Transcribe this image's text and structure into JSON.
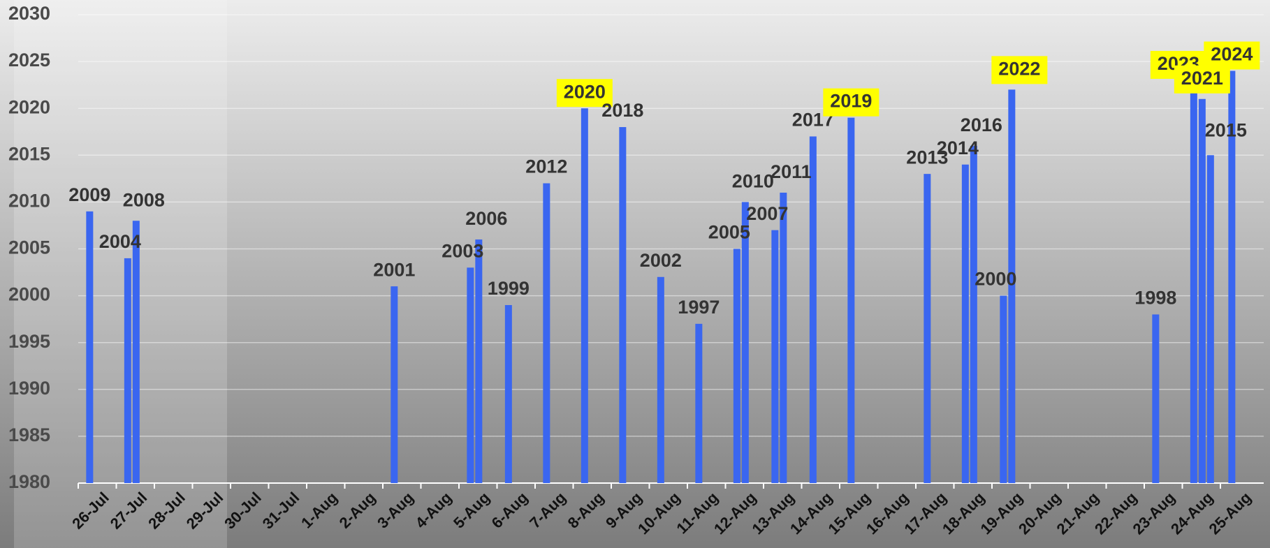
{
  "chart_data": {
    "type": "bar",
    "categories": [
      "26-Jul",
      "27-Jul",
      "28-Jul",
      "29-Jul",
      "30-Jul",
      "31-Jul",
      "1-Aug",
      "2-Aug",
      "3-Aug",
      "4-Aug",
      "5-Aug",
      "6-Aug",
      "7-Aug",
      "8-Aug",
      "9-Aug",
      "10-Aug",
      "11-Aug",
      "12-Aug",
      "13-Aug",
      "14-Aug",
      "15-Aug",
      "16-Aug",
      "17-Aug",
      "18-Aug",
      "19-Aug",
      "20-Aug",
      "21-Aug",
      "22-Aug",
      "23-Aug",
      "24-Aug",
      "25-Aug"
    ],
    "values": [
      [
        2009
      ],
      [
        2004,
        2008
      ],
      [],
      [],
      [],
      [],
      [],
      [],
      [
        2001
      ],
      [],
      [
        2003,
        2006
      ],
      [
        1999
      ],
      [
        2012
      ],
      [
        2020
      ],
      [
        2018
      ],
      [
        2002
      ],
      [
        1997
      ],
      [
        2005,
        2010
      ],
      [
        2007,
        2011
      ],
      [
        2017
      ],
      [
        2019
      ],
      [],
      [
        2013
      ],
      [
        2014,
        2016
      ],
      [
        2000,
        2022
      ],
      [],
      [],
      [],
      [
        1998
      ],
      [
        2023,
        2021,
        2015
      ],
      [
        2024
      ]
    ],
    "highlight": [
      [
        false
      ],
      [
        false,
        false
      ],
      [],
      [],
      [],
      [],
      [],
      [],
      [
        false
      ],
      [],
      [
        false,
        false
      ],
      [
        false
      ],
      [
        false
      ],
      [
        true
      ],
      [
        false
      ],
      [
        false
      ],
      [
        false
      ],
      [
        false,
        false
      ],
      [
        false,
        false
      ],
      [
        false
      ],
      [
        true
      ],
      [],
      [
        false
      ],
      [
        false,
        false
      ],
      [
        false,
        true
      ],
      [],
      [],
      [],
      [
        false
      ],
      [
        true,
        true,
        false
      ],
      [
        true
      ]
    ],
    "color": "#3a66f0",
    "highlight_color": "#ffff00",
    "ylim": [
      1980,
      2030
    ],
    "yticks": [
      1980,
      1985,
      1990,
      1995,
      2000,
      2005,
      2010,
      2015,
      2020,
      2025,
      2030
    ],
    "grid": true
  }
}
